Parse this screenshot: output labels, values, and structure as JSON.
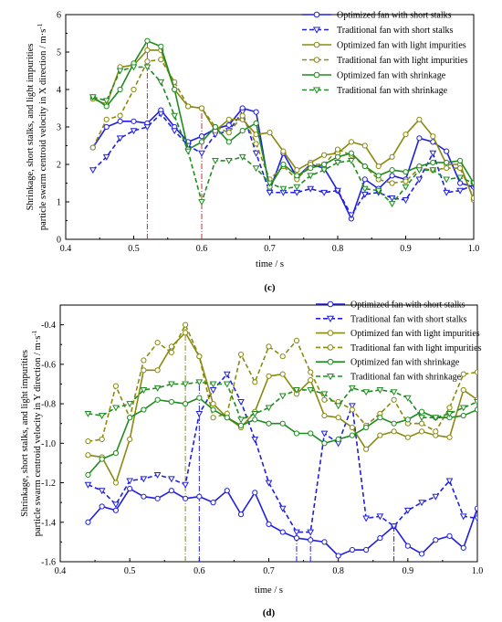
{
  "colors": {
    "blue": "#1f1fe0",
    "olive": "#8a8a10",
    "green": "#1e8c1e",
    "axis": "#000000"
  },
  "chart_data": [
    {
      "type": "line",
      "panel_label": "c",
      "xlabel": "time / s",
      "ylabel_line1": "Shrinkage, short stalks, and light impurities",
      "ylabel_line2": "particle swarm centroid velocity in X direction / m·s",
      "ylabel_sup": "-1",
      "xlim": [
        0.4,
        1.0
      ],
      "ylim": [
        0,
        6
      ],
      "xticks": [
        "0.4",
        "0.5",
        "0.6",
        "0.7",
        "0.8",
        "0.9",
        "1.0"
      ],
      "yticks": [
        "0",
        "1",
        "2",
        "3",
        "4",
        "5",
        "6"
      ],
      "legend_position": "top-right",
      "vlines": [
        {
          "x": 0.52,
          "ymax": 5.3,
          "color": "#c03030"
        },
        {
          "x": 0.6,
          "ymax": 3.5,
          "color": "#c03030"
        }
      ],
      "series": [
        {
          "name": "Optimized fan with short stalks",
          "color": "#1f1fe0",
          "dash": false,
          "marker": "circle",
          "x": [
            0.44,
            0.46,
            0.48,
            0.5,
            0.52,
            0.54,
            0.56,
            0.58,
            0.6,
            0.62,
            0.64,
            0.66,
            0.68,
            0.7,
            0.72,
            0.74,
            0.76,
            0.78,
            0.8,
            0.82,
            0.84,
            0.86,
            0.88,
            0.9,
            0.92,
            0.94,
            0.96,
            0.98,
            1.0
          ],
          "y": [
            2.45,
            3.0,
            3.15,
            3.15,
            3.1,
            3.45,
            3.0,
            2.6,
            2.75,
            2.95,
            3.05,
            3.5,
            3.4,
            1.3,
            2.3,
            1.65,
            2.0,
            1.9,
            1.3,
            0.55,
            1.6,
            1.35,
            1.7,
            1.6,
            2.7,
            2.6,
            2.35,
            1.5,
            1.4
          ]
        },
        {
          "name": "Traditional fan with short stalks",
          "color": "#1f1fe0",
          "dash": true,
          "marker": "triangle",
          "x": [
            0.44,
            0.46,
            0.48,
            0.5,
            0.52,
            0.54,
            0.56,
            0.58,
            0.6,
            0.62,
            0.64,
            0.66,
            0.68,
            0.7,
            0.72,
            0.74,
            0.76,
            0.78,
            0.8,
            0.82,
            0.84,
            0.86,
            0.88,
            0.9,
            0.92,
            0.94,
            0.96,
            0.98,
            1.0
          ],
          "y": [
            1.85,
            2.2,
            2.7,
            2.9,
            3.0,
            3.35,
            2.9,
            2.5,
            2.3,
            2.8,
            2.9,
            3.4,
            2.3,
            1.25,
            1.25,
            1.25,
            1.35,
            1.25,
            1.3,
            0.65,
            1.2,
            1.25,
            1.1,
            1.05,
            1.6,
            2.3,
            1.25,
            1.3,
            1.45
          ]
        },
        {
          "name": "Optimized fan with light impurities",
          "color": "#8a8a10",
          "dash": false,
          "marker": "circle",
          "x": [
            0.44,
            0.46,
            0.48,
            0.5,
            0.52,
            0.54,
            0.56,
            0.58,
            0.6,
            0.62,
            0.64,
            0.66,
            0.68,
            0.7,
            0.72,
            0.74,
            0.76,
            0.78,
            0.8,
            0.82,
            0.84,
            0.86,
            0.88,
            0.9,
            0.92,
            0.94,
            0.96,
            0.98,
            1.0
          ],
          "y": [
            3.75,
            3.6,
            4.6,
            4.65,
            5.05,
            5.05,
            4.0,
            3.55,
            3.5,
            2.9,
            3.2,
            3.2,
            2.8,
            2.85,
            2.35,
            1.85,
            2.05,
            2.25,
            2.3,
            2.6,
            2.5,
            1.95,
            2.2,
            2.8,
            3.2,
            2.75,
            2.0,
            2.0,
            1.05
          ]
        },
        {
          "name": "Traditional fan with light impurities",
          "color": "#8a8a10",
          "dash": true,
          "marker": "circle",
          "x": [
            0.44,
            0.46,
            0.48,
            0.5,
            0.52,
            0.54,
            0.56,
            0.58,
            0.6,
            0.62,
            0.64,
            0.66,
            0.68,
            0.7,
            0.72,
            0.74,
            0.76,
            0.78,
            0.8,
            0.82,
            0.84,
            0.86,
            0.88,
            0.9,
            0.92,
            0.94,
            0.96,
            0.98,
            1.0
          ],
          "y": [
            2.45,
            3.2,
            3.3,
            4.0,
            4.75,
            4.8,
            4.2,
            3.55,
            3.5,
            3.0,
            2.85,
            3.3,
            2.55,
            1.6,
            1.95,
            1.6,
            2.0,
            2.0,
            2.4,
            2.25,
            1.95,
            1.6,
            1.5,
            1.55,
            1.9,
            1.85,
            1.9,
            1.9,
            1.1
          ]
        },
        {
          "name": "Optimized fan with shrinkage",
          "color": "#1e8c1e",
          "dash": false,
          "marker": "circle",
          "x": [
            0.44,
            0.46,
            0.48,
            0.5,
            0.52,
            0.54,
            0.56,
            0.58,
            0.6,
            0.62,
            0.64,
            0.66,
            0.68,
            0.7,
            0.72,
            0.74,
            0.76,
            0.78,
            0.8,
            0.82,
            0.84,
            0.86,
            0.88,
            0.9,
            0.92,
            0.94,
            0.96,
            0.98,
            1.0
          ],
          "y": [
            3.8,
            3.55,
            4.0,
            4.7,
            5.3,
            5.15,
            4.0,
            2.4,
            2.6,
            3.0,
            2.6,
            2.9,
            3.1,
            1.4,
            2.0,
            1.7,
            1.9,
            2.0,
            2.2,
            2.3,
            1.95,
            1.7,
            1.85,
            1.8,
            1.95,
            2.05,
            2.05,
            2.1,
            1.5
          ]
        },
        {
          "name": "Traditional fan with shrinkage",
          "color": "#1e8c1e",
          "dash": true,
          "marker": "triangle",
          "x": [
            0.44,
            0.46,
            0.48,
            0.5,
            0.52,
            0.54,
            0.56,
            0.58,
            0.6,
            0.62,
            0.64,
            0.66,
            0.68,
            0.7,
            0.72,
            0.74,
            0.76,
            0.78,
            0.8,
            0.82,
            0.84,
            0.86,
            0.88,
            0.9,
            0.92,
            0.94,
            0.96,
            0.98,
            1.0
          ],
          "y": [
            3.8,
            3.7,
            4.5,
            4.6,
            4.6,
            4.2,
            3.3,
            2.35,
            1.0,
            2.1,
            2.1,
            2.2,
            1.9,
            1.5,
            1.35,
            1.4,
            1.7,
            1.85,
            2.05,
            2.1,
            1.35,
            1.3,
            0.95,
            1.4,
            1.85,
            1.85,
            1.6,
            1.65,
            1.5
          ]
        }
      ]
    },
    {
      "type": "line",
      "panel_label": "d",
      "xlabel": "time / s",
      "ylabel_line1": "Shrinkage, short stalks, and light impurities",
      "ylabel_line2": "particle swarm centroid velocity in Y direction / m·s",
      "ylabel_sup": "-1",
      "xlim": [
        0.4,
        1.0
      ],
      "ylim": [
        -1.6,
        -0.3
      ],
      "xticks": [
        "0.4",
        "0.5",
        "0.6",
        "0.7",
        "0.8",
        "0.9",
        "1.0"
      ],
      "yticks": [
        "-1.6",
        "-1.4",
        "-1.2",
        "-1.0",
        "-0.8",
        "-0.6",
        "-0.4"
      ],
      "legend_position": "top-right",
      "vlines": [
        {
          "x": 0.58,
          "ymax": -0.42,
          "color": "#8a8a10"
        },
        {
          "x": 0.6,
          "ymax": -0.7,
          "color": "#1f1fe0"
        },
        {
          "x": 0.74,
          "ymax": -1.45,
          "color": "#1f1fe0"
        },
        {
          "x": 0.76,
          "ymax": -1.45,
          "color": "#1f1fe0"
        },
        {
          "x": 0.88,
          "ymax": -1.42,
          "color": "#1f1fe0"
        }
      ],
      "series": [
        {
          "name": "Optimized fan with short stalks",
          "color": "#1f1fe0",
          "dash": false,
          "marker": "circle",
          "x": [
            0.44,
            0.46,
            0.48,
            0.5,
            0.52,
            0.54,
            0.56,
            0.58,
            0.6,
            0.62,
            0.64,
            0.66,
            0.68,
            0.7,
            0.72,
            0.74,
            0.76,
            0.78,
            0.8,
            0.82,
            0.84,
            0.86,
            0.88,
            0.9,
            0.92,
            0.94,
            0.96,
            0.98,
            1.0
          ],
          "y": [
            -1.4,
            -1.32,
            -1.34,
            -1.23,
            -1.27,
            -1.28,
            -1.24,
            -1.28,
            -1.27,
            -1.3,
            -1.24,
            -1.36,
            -1.25,
            -1.41,
            -1.45,
            -1.48,
            -1.49,
            -1.5,
            -1.57,
            -1.54,
            -1.54,
            -1.48,
            -1.42,
            -1.52,
            -1.56,
            -1.49,
            -1.47,
            -1.53,
            -1.33
          ]
        },
        {
          "name": "Traditional fan with short stalks",
          "color": "#1f1fe0",
          "dash": true,
          "marker": "triangle",
          "x": [
            0.44,
            0.46,
            0.48,
            0.5,
            0.52,
            0.54,
            0.56,
            0.58,
            0.6,
            0.62,
            0.64,
            0.66,
            0.68,
            0.7,
            0.72,
            0.74,
            0.76,
            0.78,
            0.8,
            0.82,
            0.84,
            0.86,
            0.88,
            0.9,
            0.92,
            0.94,
            0.96,
            0.98,
            1.0
          ],
          "y": [
            -1.21,
            -1.24,
            -1.31,
            -1.19,
            -1.18,
            -1.16,
            -1.18,
            -1.21,
            -0.85,
            -0.73,
            -0.65,
            -0.79,
            -0.98,
            -1.2,
            -1.33,
            -1.45,
            -1.45,
            -0.95,
            -1.0,
            -0.81,
            -1.38,
            -1.37,
            -1.42,
            -1.34,
            -1.3,
            -1.27,
            -1.19,
            -1.37,
            -1.38
          ]
        },
        {
          "name": "Optimized fan with light impurities",
          "color": "#8a8a10",
          "dash": false,
          "marker": "circle",
          "x": [
            0.44,
            0.46,
            0.48,
            0.5,
            0.52,
            0.54,
            0.56,
            0.58,
            0.6,
            0.62,
            0.64,
            0.66,
            0.68,
            0.7,
            0.72,
            0.74,
            0.76,
            0.78,
            0.8,
            0.82,
            0.84,
            0.86,
            0.88,
            0.9,
            0.92,
            0.94,
            0.96,
            0.98,
            1.0
          ],
          "y": [
            -1.06,
            -1.07,
            -1.2,
            -0.98,
            -0.63,
            -0.63,
            -0.51,
            -0.44,
            -0.56,
            -0.8,
            -0.87,
            -0.92,
            -0.84,
            -0.66,
            -0.65,
            -0.75,
            -0.68,
            -0.86,
            -0.87,
            -0.92,
            -1.03,
            -0.96,
            -0.94,
            -0.97,
            -0.94,
            -0.96,
            -0.97,
            -0.73,
            -0.78
          ]
        },
        {
          "name": "Traditional fan with light impurities",
          "color": "#8a8a10",
          "dash": true,
          "marker": "circle",
          "x": [
            0.44,
            0.46,
            0.48,
            0.5,
            0.52,
            0.54,
            0.56,
            0.58,
            0.6,
            0.62,
            0.64,
            0.66,
            0.68,
            0.7,
            0.72,
            0.74,
            0.76,
            0.78,
            0.8,
            0.82,
            0.84,
            0.86,
            0.88,
            0.9,
            0.92,
            0.94,
            0.96,
            0.98,
            1.0
          ],
          "y": [
            -0.99,
            -0.98,
            -0.71,
            -0.87,
            -0.58,
            -0.49,
            -0.54,
            -0.4,
            -0.56,
            -0.87,
            -0.85,
            -0.55,
            -0.69,
            -0.51,
            -0.56,
            -0.48,
            -0.64,
            -0.78,
            -0.79,
            -0.83,
            -0.91,
            -0.85,
            -0.78,
            -0.9,
            -0.9,
            -0.94,
            -0.82,
            -0.65,
            -0.64
          ]
        },
        {
          "name": "Optimized fan with shrinkage",
          "color": "#1e8c1e",
          "dash": false,
          "marker": "circle",
          "x": [
            0.44,
            0.46,
            0.48,
            0.5,
            0.52,
            0.54,
            0.56,
            0.58,
            0.6,
            0.62,
            0.64,
            0.66,
            0.68,
            0.7,
            0.72,
            0.74,
            0.76,
            0.78,
            0.8,
            0.82,
            0.84,
            0.86,
            0.88,
            0.9,
            0.92,
            0.94,
            0.96,
            0.98,
            1.0
          ],
          "y": [
            -1.16,
            -1.08,
            -1.05,
            -0.87,
            -0.83,
            -0.78,
            -0.79,
            -0.8,
            -0.77,
            -0.83,
            -0.87,
            -0.91,
            -0.88,
            -0.9,
            -0.9,
            -0.95,
            -0.95,
            -1.0,
            -0.98,
            -0.96,
            -0.92,
            -0.87,
            -0.9,
            -0.88,
            -0.84,
            -0.87,
            -0.87,
            -0.86,
            -0.83
          ]
        },
        {
          "name": "Traditional fan with shrinkage",
          "color": "#1e8c1e",
          "dash": true,
          "marker": "triangle",
          "x": [
            0.44,
            0.46,
            0.48,
            0.5,
            0.52,
            0.54,
            0.56,
            0.58,
            0.6,
            0.62,
            0.64,
            0.66,
            0.68,
            0.7,
            0.72,
            0.74,
            0.76,
            0.78,
            0.8,
            0.82,
            0.84,
            0.86,
            0.88,
            0.9,
            0.92,
            0.94,
            0.96,
            0.98,
            1.0
          ],
          "y": [
            -0.85,
            -0.86,
            -0.82,
            -0.8,
            -0.73,
            -0.72,
            -0.7,
            -0.7,
            -0.69,
            -0.7,
            -0.7,
            -0.88,
            -0.85,
            -0.82,
            -0.76,
            -0.73,
            -0.73,
            -0.75,
            -0.81,
            -0.72,
            -0.74,
            -0.73,
            -0.74,
            -0.77,
            -0.87,
            -0.87,
            -0.85,
            -0.82,
            -0.79
          ]
        }
      ]
    }
  ]
}
